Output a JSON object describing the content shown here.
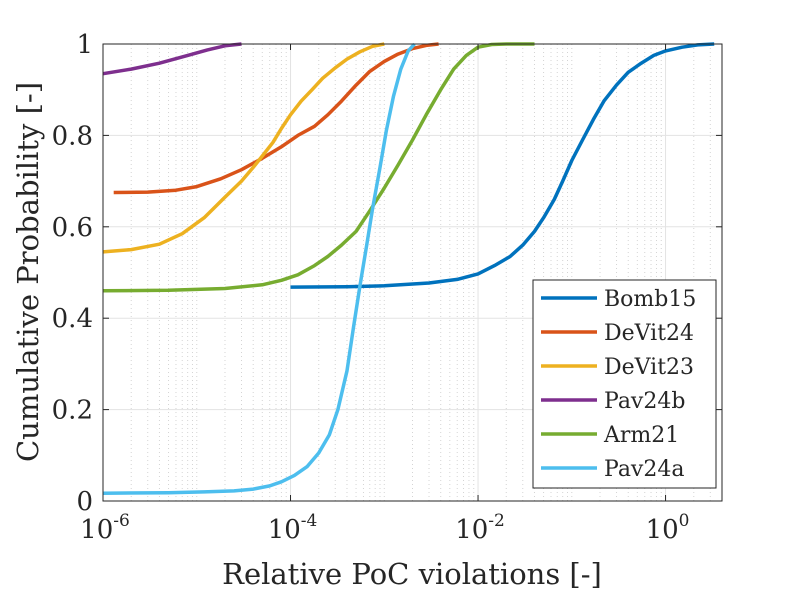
{
  "chart_data": {
    "type": "line",
    "title": "",
    "xlabel": "Relative PoC violations [-]",
    "ylabel": "Cumulative Probability [-]",
    "xscale": "log",
    "xlim": [
      1e-06,
      4
    ],
    "ylim": [
      0,
      1
    ],
    "grid": true,
    "minor_grid": true,
    "legend_position": "bottom-right",
    "x_ticks": [
      {
        "base": "10",
        "exp": "-6",
        "value": 1e-06
      },
      {
        "base": "10",
        "exp": "-4",
        "value": 0.0001
      },
      {
        "base": "10",
        "exp": "-2",
        "value": 0.01
      },
      {
        "base": "10",
        "exp": "0",
        "value": 1
      }
    ],
    "y_ticks": [
      {
        "label": "0",
        "value": 0
      },
      {
        "label": "0.2",
        "value": 0.2
      },
      {
        "label": "0.4",
        "value": 0.4
      },
      {
        "label": "0.6",
        "value": 0.6
      },
      {
        "label": "0.8",
        "value": 0.8
      },
      {
        "label": "1",
        "value": 1
      }
    ],
    "series": [
      {
        "name": "Bomb15",
        "color": "#0072BD",
        "x": [
          0.0001,
          0.0004,
          0.001,
          0.003,
          0.006,
          0.01,
          0.015,
          0.022,
          0.03,
          0.04,
          0.05,
          0.065,
          0.08,
          0.1,
          0.13,
          0.17,
          0.22,
          0.3,
          0.4,
          0.55,
          0.75,
          1.0,
          1.5,
          2.2,
          3.3
        ],
        "y": [
          0.468,
          0.469,
          0.471,
          0.477,
          0.485,
          0.497,
          0.515,
          0.535,
          0.56,
          0.59,
          0.62,
          0.66,
          0.7,
          0.745,
          0.79,
          0.835,
          0.875,
          0.91,
          0.938,
          0.958,
          0.975,
          0.985,
          0.993,
          0.998,
          1.0
        ]
      },
      {
        "name": "DeVit24",
        "color": "#D95319",
        "x": [
          1.3e-06,
          3e-06,
          6e-06,
          1e-05,
          1.8e-05,
          3e-05,
          5e-05,
          8e-05,
          0.00012,
          0.00018,
          0.00025,
          0.00035,
          0.0005,
          0.0007,
          0.001,
          0.0014,
          0.002,
          0.0028,
          0.0038
        ],
        "y": [
          0.675,
          0.676,
          0.68,
          0.688,
          0.705,
          0.725,
          0.75,
          0.775,
          0.8,
          0.82,
          0.845,
          0.875,
          0.91,
          0.94,
          0.962,
          0.978,
          0.99,
          0.997,
          1.0
        ]
      },
      {
        "name": "DeVit23",
        "color": "#EDB120",
        "x": [
          1e-06,
          2e-06,
          4e-06,
          7e-06,
          1.2e-05,
          2e-05,
          3e-05,
          4e-05,
          5e-05,
          6.5e-05,
          8e-05,
          0.0001,
          0.00013,
          0.00017,
          0.00022,
          0.0003,
          0.0004,
          0.00055,
          0.00075,
          0.001
        ],
        "y": [
          0.545,
          0.55,
          0.562,
          0.585,
          0.62,
          0.665,
          0.7,
          0.73,
          0.755,
          0.785,
          0.815,
          0.845,
          0.875,
          0.9,
          0.925,
          0.948,
          0.967,
          0.983,
          0.995,
          1.0
        ]
      },
      {
        "name": "Pav24b",
        "color": "#7E2F8E",
        "x": [
          1e-06,
          2e-06,
          4e-06,
          8e-06,
          1.3e-05,
          2e-05,
          3e-05
        ],
        "y": [
          0.935,
          0.945,
          0.958,
          0.975,
          0.987,
          0.996,
          1.0
        ]
      },
      {
        "name": "Arm21",
        "color": "#77AC30",
        "x": [
          1e-06,
          5e-06,
          2e-05,
          5e-05,
          8e-05,
          0.00012,
          0.00018,
          0.00025,
          0.00035,
          0.0005,
          0.0007,
          0.001,
          0.0014,
          0.002,
          0.0028,
          0.004,
          0.0055,
          0.0075,
          0.01,
          0.014,
          0.02,
          0.04
        ],
        "y": [
          0.46,
          0.461,
          0.465,
          0.473,
          0.483,
          0.495,
          0.515,
          0.535,
          0.56,
          0.59,
          0.635,
          0.685,
          0.735,
          0.79,
          0.845,
          0.9,
          0.945,
          0.975,
          0.993,
          0.999,
          1.0,
          1.0
        ]
      },
      {
        "name": "Pav24a",
        "color": "#4DBEEE",
        "x": [
          1e-06,
          5e-06,
          1.2e-05,
          2.5e-05,
          4e-05,
          6e-05,
          8e-05,
          0.00011,
          0.00015,
          0.0002,
          0.00026,
          0.00032,
          0.0004,
          0.00047,
          0.00055,
          0.00065,
          0.00075,
          0.0009,
          0.00105,
          0.00125,
          0.0015,
          0.0018,
          0.0021
        ],
        "y": [
          0.017,
          0.018,
          0.02,
          0.022,
          0.026,
          0.033,
          0.042,
          0.056,
          0.075,
          0.105,
          0.145,
          0.2,
          0.285,
          0.38,
          0.47,
          0.56,
          0.64,
          0.73,
          0.81,
          0.885,
          0.945,
          0.985,
          1.0
        ]
      }
    ]
  }
}
